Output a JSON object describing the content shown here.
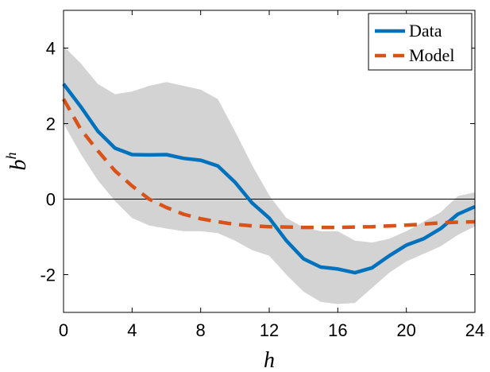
{
  "chart_data": {
    "type": "line",
    "title": "",
    "xlabel": "h",
    "ylabel_base": "b",
    "ylabel_sup": "h",
    "xlim": [
      0,
      24
    ],
    "ylim": [
      -3,
      5
    ],
    "xticks": [
      0,
      4,
      8,
      12,
      16,
      20,
      24
    ],
    "yticks": [
      -2,
      0,
      2,
      4
    ],
    "ytick_labels": [
      "-2",
      "0",
      "2",
      "4"
    ],
    "xtick_labels": [
      "0",
      "4",
      "8",
      "12",
      "16",
      "20",
      "24"
    ],
    "grid": false,
    "legend_position": "top-right",
    "zero_line": true,
    "x": [
      0,
      1,
      2,
      3,
      4,
      5,
      6,
      7,
      8,
      9,
      10,
      11,
      12,
      13,
      14,
      15,
      16,
      17,
      18,
      19,
      20,
      21,
      22,
      23,
      24
    ],
    "series": [
      {
        "name": "Data",
        "style": "solid",
        "color": "#0072BD",
        "values": [
          3.05,
          2.45,
          1.8,
          1.35,
          1.18,
          1.17,
          1.18,
          1.08,
          1.03,
          0.88,
          0.45,
          -0.1,
          -0.5,
          -1.1,
          -1.58,
          -1.8,
          -1.85,
          -1.95,
          -1.82,
          -1.5,
          -1.22,
          -1.05,
          -0.78,
          -0.4,
          -0.2
        ]
      },
      {
        "name": "Model",
        "style": "dashed",
        "color": "#D95319",
        "values": [
          2.65,
          1.85,
          1.28,
          0.75,
          0.35,
          0.0,
          -0.22,
          -0.4,
          -0.52,
          -0.6,
          -0.67,
          -0.71,
          -0.73,
          -0.74,
          -0.75,
          -0.75,
          -0.75,
          -0.74,
          -0.73,
          -0.71,
          -0.69,
          -0.66,
          -0.63,
          -0.61,
          -0.6
        ]
      }
    ],
    "band": {
      "color": "#d3d3d3",
      "upper": [
        4.05,
        3.6,
        3.05,
        2.78,
        2.85,
        3.0,
        3.1,
        3.0,
        2.9,
        2.65,
        1.8,
        0.9,
        0.1,
        -0.5,
        -0.75,
        -0.85,
        -0.85,
        -1.1,
        -1.15,
        -1.05,
        -0.85,
        -0.6,
        -0.35,
        0.08,
        0.18
      ],
      "lower": [
        2.0,
        1.2,
        0.5,
        -0.05,
        -0.5,
        -0.7,
        -0.78,
        -0.85,
        -0.85,
        -0.9,
        -1.1,
        -1.35,
        -1.5,
        -2.0,
        -2.45,
        -2.72,
        -2.78,
        -2.75,
        -2.35,
        -1.95,
        -1.65,
        -1.45,
        -1.25,
        -0.95,
        -0.72
      ]
    }
  }
}
